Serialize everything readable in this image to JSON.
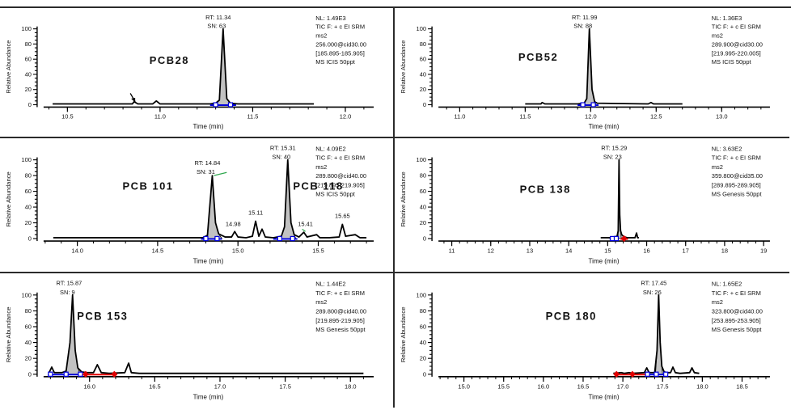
{
  "page": {
    "background": "#ffffff",
    "border_color": "#2b2b2b"
  },
  "shared": {
    "ylabel": "Relative Abundance",
    "xlabel": "Time (min)",
    "y_major_ticks": [
      0,
      20,
      40,
      60,
      80,
      100
    ],
    "y_minor_step": 5,
    "colors": {
      "trace": "#000000",
      "peak_fill": "#c2c2c2",
      "marker_blue": "#0000dd",
      "marker_red": "#e00000",
      "leader_green": "#2fa84f",
      "text": "#111111"
    }
  },
  "chart_data": [
    {
      "id": "pcb28",
      "type": "line",
      "compound_label": {
        "text": "PCB28",
        "t": 11.05,
        "y": 70
      },
      "peak_annotations": [
        {
          "rt": "RT: 11.34",
          "sn": "SN: 63",
          "t": 11.34,
          "ty": 14
        }
      ],
      "minor_peak_labels": [],
      "header_lines": [
        "NL: 1.49E3",
        "TIC F: + c EI SRM",
        "ms2",
        "256.000@cid30.00",
        "[185.895-185.905]",
        "MS  ICIS 50ppt"
      ],
      "xlim": [
        10.38,
        12.14
      ],
      "ylim": [
        0,
        100
      ],
      "x_major": {
        "values": [
          10.5,
          11.0,
          11.5,
          12.0
        ],
        "labels": [
          "10.5",
          "11.0",
          "11.5",
          "12.0"
        ]
      },
      "x_minor_step": 0.1,
      "trace": [
        [
          10.42,
          1
        ],
        [
          10.8,
          1
        ],
        [
          10.85,
          1
        ],
        [
          10.86,
          4
        ],
        [
          10.88,
          1
        ],
        [
          10.96,
          1
        ],
        [
          10.98,
          5
        ],
        [
          11.0,
          1
        ],
        [
          11.27,
          1
        ],
        [
          11.3,
          2
        ],
        [
          11.32,
          6
        ],
        [
          11.34,
          100
        ],
        [
          11.36,
          8
        ],
        [
          11.38,
          2
        ],
        [
          11.42,
          1
        ],
        [
          11.83,
          1
        ]
      ],
      "fill_ranges": [
        [
          11.3,
          11.41
        ]
      ],
      "markers": {
        "blue_squares": [
          11.3,
          11.38
        ],
        "blue_segments": [
          [
            11.27,
            11.41
          ]
        ],
        "red_diamonds": [],
        "red_segments": [],
        "green_leaders": []
      },
      "cursor": {
        "t": 10.87
      }
    },
    {
      "id": "pcb52",
      "type": "line",
      "compound_label": {
        "text": "PCB52",
        "t": 11.6,
        "y": 66
      },
      "peak_annotations": [
        {
          "rt": "RT: 11.99",
          "sn": "SN: 88",
          "t": 11.99,
          "ty": 14
        }
      ],
      "minor_peak_labels": [],
      "header_lines": [
        "NL: 1.36E3",
        "TIC F: + c EI SRM",
        "ms2",
        "289.900@cid30.00",
        "[219.995-220.005]",
        "MS  ICIS 50ppt"
      ],
      "xlim": [
        10.85,
        13.35
      ],
      "ylim": [
        0,
        100
      ],
      "x_major": {
        "values": [
          11.0,
          11.5,
          12.0,
          12.5,
          13.0
        ],
        "labels": [
          "11.0",
          "11.5",
          "12.0",
          "12.5",
          "13.0"
        ]
      },
      "x_minor_step": 0.1,
      "trace": [
        [
          11.5,
          1
        ],
        [
          11.62,
          1
        ],
        [
          11.63,
          3
        ],
        [
          11.65,
          1
        ],
        [
          11.9,
          1
        ],
        [
          11.95,
          2
        ],
        [
          11.97,
          8
        ],
        [
          11.99,
          100
        ],
        [
          12.01,
          20
        ],
        [
          12.03,
          4
        ],
        [
          12.05,
          2
        ],
        [
          12.44,
          1
        ],
        [
          12.46,
          3
        ],
        [
          12.48,
          1
        ],
        [
          12.7,
          1
        ]
      ],
      "fill_ranges": [
        [
          11.95,
          12.04
        ]
      ],
      "markers": {
        "blue_squares": [
          11.94,
          12.02
        ],
        "blue_segments": [
          [
            11.9,
            12.06
          ]
        ],
        "red_diamonds": [],
        "red_segments": [],
        "green_leaders": []
      }
    },
    {
      "id": "pcb101-118",
      "type": "line",
      "compound_label": {
        "text": "PCB 101",
        "t": 14.44,
        "y": 62
      },
      "compound_label2": {
        "text": "PCB 118",
        "t": 15.5,
        "y": 62
      },
      "peak_annotations": [
        {
          "rt": "RT: 14.84",
          "sn": "SN: 31",
          "t": 14.84,
          "ty": 32
        },
        {
          "rt": "RT: 15.31",
          "sn": "SN: 40",
          "t": 15.31,
          "ty": 14
        }
      ],
      "minor_peak_labels": [
        {
          "text": "14.98",
          "t": 14.97,
          "h": 13
        },
        {
          "text": "15.11",
          "t": 15.11,
          "h": 27
        },
        {
          "text": "15.41",
          "t": 15.42,
          "h": 13
        },
        {
          "text": "15.65",
          "t": 15.65,
          "h": 23
        }
      ],
      "header_lines": [
        "NL: 4.09E2",
        "TIC F: + c EI SRM",
        "ms2",
        "289.800@cid40.00",
        "[219.895-219.905]",
        "MS  ICIS 50ppt"
      ],
      "xlim": [
        13.8,
        15.83
      ],
      "ylim": [
        0,
        100
      ],
      "x_major": {
        "values": [
          14.0,
          14.5,
          15.0,
          15.5
        ],
        "labels": [
          "14.0",
          "14.5",
          "15.0",
          "15.5"
        ]
      },
      "x_minor_step": 0.1,
      "trace": [
        [
          13.85,
          1
        ],
        [
          14.6,
          1
        ],
        [
          14.78,
          1
        ],
        [
          14.81,
          4
        ],
        [
          14.84,
          80
        ],
        [
          14.86,
          20
        ],
        [
          14.88,
          6
        ],
        [
          14.92,
          2
        ],
        [
          14.96,
          2
        ],
        [
          14.98,
          9
        ],
        [
          15.0,
          2
        ],
        [
          15.05,
          1
        ],
        [
          15.09,
          3
        ],
        [
          15.11,
          22
        ],
        [
          15.13,
          3
        ],
        [
          15.15,
          12
        ],
        [
          15.17,
          2
        ],
        [
          15.22,
          1
        ],
        [
          15.27,
          3
        ],
        [
          15.29,
          15
        ],
        [
          15.31,
          100
        ],
        [
          15.33,
          20
        ],
        [
          15.35,
          5
        ],
        [
          15.38,
          2
        ],
        [
          15.41,
          8
        ],
        [
          15.43,
          2
        ],
        [
          15.49,
          5
        ],
        [
          15.51,
          1
        ],
        [
          15.57,
          1
        ],
        [
          15.63,
          2
        ],
        [
          15.65,
          18
        ],
        [
          15.67,
          3
        ],
        [
          15.73,
          5
        ],
        [
          15.76,
          1
        ],
        [
          15.8,
          1
        ]
      ],
      "fill_ranges": [
        [
          14.81,
          14.9
        ],
        [
          15.27,
          15.36
        ]
      ],
      "markers": {
        "blue_squares": [
          14.8,
          14.87,
          15.26,
          15.34
        ],
        "blue_segments": [
          [
            14.77,
            14.9
          ],
          [
            15.22,
            15.37
          ]
        ],
        "red_diamonds": [],
        "red_segments": [],
        "green_leaders": [
          [
            [
              14.93,
              84
            ],
            [
              14.85,
              80
            ]
          ],
          [
            [
              15.4,
              12
            ],
            [
              15.42,
              9
            ]
          ]
        ]
      }
    },
    {
      "id": "pcb138",
      "type": "line",
      "compound_label": {
        "text": "PCB 138",
        "t": 13.4,
        "y": 66
      },
      "peak_annotations": [
        {
          "rt": "RT: 15.29",
          "sn": "SN: 23",
          "t": 15.29,
          "ty": 14
        }
      ],
      "minor_peak_labels": [],
      "header_lines": [
        "NL: 3.63E2",
        "TIC F: + c EI SRM",
        "ms2",
        "359.800@cid35.00",
        "[289.895-289.905]",
        "MS  Genesis 50ppt"
      ],
      "xlim": [
        10.7,
        19.1
      ],
      "ylim": [
        0,
        100
      ],
      "x_major": {
        "values": [
          11,
          12,
          13,
          14,
          15,
          16,
          17,
          18,
          19
        ],
        "labels": [
          "11",
          "12",
          "13",
          "14",
          "15",
          "16",
          "17",
          "18",
          "19"
        ]
      },
      "x_minor_step": 0.2,
      "trace": [
        [
          14.82,
          1
        ],
        [
          15.05,
          1
        ],
        [
          15.15,
          2
        ],
        [
          15.24,
          3
        ],
        [
          15.27,
          10
        ],
        [
          15.29,
          100
        ],
        [
          15.31,
          30
        ],
        [
          15.33,
          10
        ],
        [
          15.36,
          5
        ],
        [
          15.4,
          3
        ],
        [
          15.44,
          2
        ],
        [
          15.5,
          1
        ],
        [
          15.7,
          1
        ],
        [
          15.74,
          7
        ],
        [
          15.77,
          1
        ],
        [
          15.8,
          1
        ]
      ],
      "fill_ranges": [
        [
          15.26,
          15.35
        ]
      ],
      "markers": {
        "blue_squares": [
          15.12,
          15.22
        ],
        "blue_segments": [
          [
            15.05,
            15.28
          ]
        ],
        "red_diamonds": [
          15.42
        ],
        "red_segments": [
          [
            15.33,
            15.52
          ]
        ],
        "green_leaders": []
      }
    },
    {
      "id": "pcb153",
      "type": "line",
      "compound_label": {
        "text": "PCB 153",
        "t": 16.1,
        "y": 56
      },
      "peak_annotations": [
        {
          "rt": "RT: 15.87",
          "sn": "SN: 9",
          "t": 15.88,
          "ty": 14
        }
      ],
      "minor_peak_labels": [],
      "header_lines": [
        "NL: 1.44E2",
        "TIC F: + c EI SRM",
        "ms2",
        "289.800@cid40.00",
        "[219.895-219.905]",
        "MS  Genesis 50ppt"
      ],
      "xlim": [
        15.66,
        18.16
      ],
      "ylim": [
        0,
        100
      ],
      "x_major": {
        "values": [
          16.0,
          16.5,
          17.0,
          17.5,
          18.0
        ],
        "labels": [
          "16.0",
          "16.5",
          "17.0",
          "17.5",
          "18.0"
        ]
      },
      "x_minor_step": 0.1,
      "trace": [
        [
          15.69,
          2
        ],
        [
          15.71,
          9
        ],
        [
          15.73,
          2
        ],
        [
          15.79,
          2
        ],
        [
          15.82,
          4
        ],
        [
          15.85,
          40
        ],
        [
          15.87,
          100
        ],
        [
          15.89,
          30
        ],
        [
          15.91,
          8
        ],
        [
          15.94,
          3
        ],
        [
          15.98,
          2
        ],
        [
          16.03,
          2
        ],
        [
          16.06,
          12
        ],
        [
          16.09,
          2
        ],
        [
          16.15,
          1
        ],
        [
          16.27,
          2
        ],
        [
          16.3,
          14
        ],
        [
          16.32,
          2
        ],
        [
          16.38,
          1
        ],
        [
          16.6,
          1
        ],
        [
          17.2,
          1
        ],
        [
          18.1,
          1
        ]
      ],
      "fill_ranges": [
        [
          15.82,
          15.93
        ]
      ],
      "markers": {
        "blue_squares": [
          15.7,
          15.82,
          15.93
        ],
        "blue_segments": [
          [
            15.68,
            15.95
          ]
        ],
        "red_diamonds": [
          15.97,
          16.19
        ],
        "red_segments": [
          [
            15.95,
            16.21
          ]
        ],
        "green_leaders": []
      }
    },
    {
      "id": "pcb180",
      "type": "line",
      "compound_label": {
        "text": "PCB 180",
        "t": 16.35,
        "y": 56
      },
      "peak_annotations": [
        {
          "rt": "RT: 17.45",
          "sn": "SN: 26",
          "t": 17.45,
          "ty": 14
        }
      ],
      "minor_peak_labels": [],
      "header_lines": [
        "NL: 1.65E2",
        "TIC F: + c EI SRM",
        "ms2",
        "323.800@cid40.00",
        "[253.895-253.905]",
        "MS  Genesis 50ppt"
      ],
      "xlim": [
        14.7,
        18.82
      ],
      "ylim": [
        0,
        100
      ],
      "x_major": {
        "values": [
          15.0,
          15.5,
          16.0,
          16.5,
          17.0,
          17.5,
          18.0,
          18.5
        ],
        "labels": [
          "15.0",
          "15.5",
          "16.0",
          "16.5",
          "17.0",
          "17.5",
          "18.0",
          "18.5"
        ]
      },
      "x_minor_step": 0.1,
      "trace": [
        [
          16.88,
          1
        ],
        [
          16.98,
          2
        ],
        [
          17.02,
          1
        ],
        [
          17.08,
          2
        ],
        [
          17.12,
          1
        ],
        [
          17.27,
          2
        ],
        [
          17.3,
          8
        ],
        [
          17.33,
          2
        ],
        [
          17.4,
          2
        ],
        [
          17.43,
          30
        ],
        [
          17.45,
          100
        ],
        [
          17.47,
          40
        ],
        [
          17.49,
          10
        ],
        [
          17.52,
          3
        ],
        [
          17.56,
          2
        ],
        [
          17.6,
          2
        ],
        [
          17.63,
          9
        ],
        [
          17.66,
          2
        ],
        [
          17.72,
          1
        ],
        [
          17.84,
          2
        ],
        [
          17.87,
          8
        ],
        [
          17.9,
          2
        ],
        [
          17.96,
          1
        ]
      ],
      "fill_ranges": [
        [
          17.41,
          17.5
        ]
      ],
      "markers": {
        "blue_squares": [
          17.31,
          17.42,
          17.54
        ],
        "blue_segments": [
          [
            17.28,
            17.56
          ]
        ],
        "red_diamonds": [
          16.92,
          17.12
        ],
        "red_segments": [
          [
            16.89,
            17.28
          ]
        ],
        "green_leaders": []
      }
    }
  ]
}
